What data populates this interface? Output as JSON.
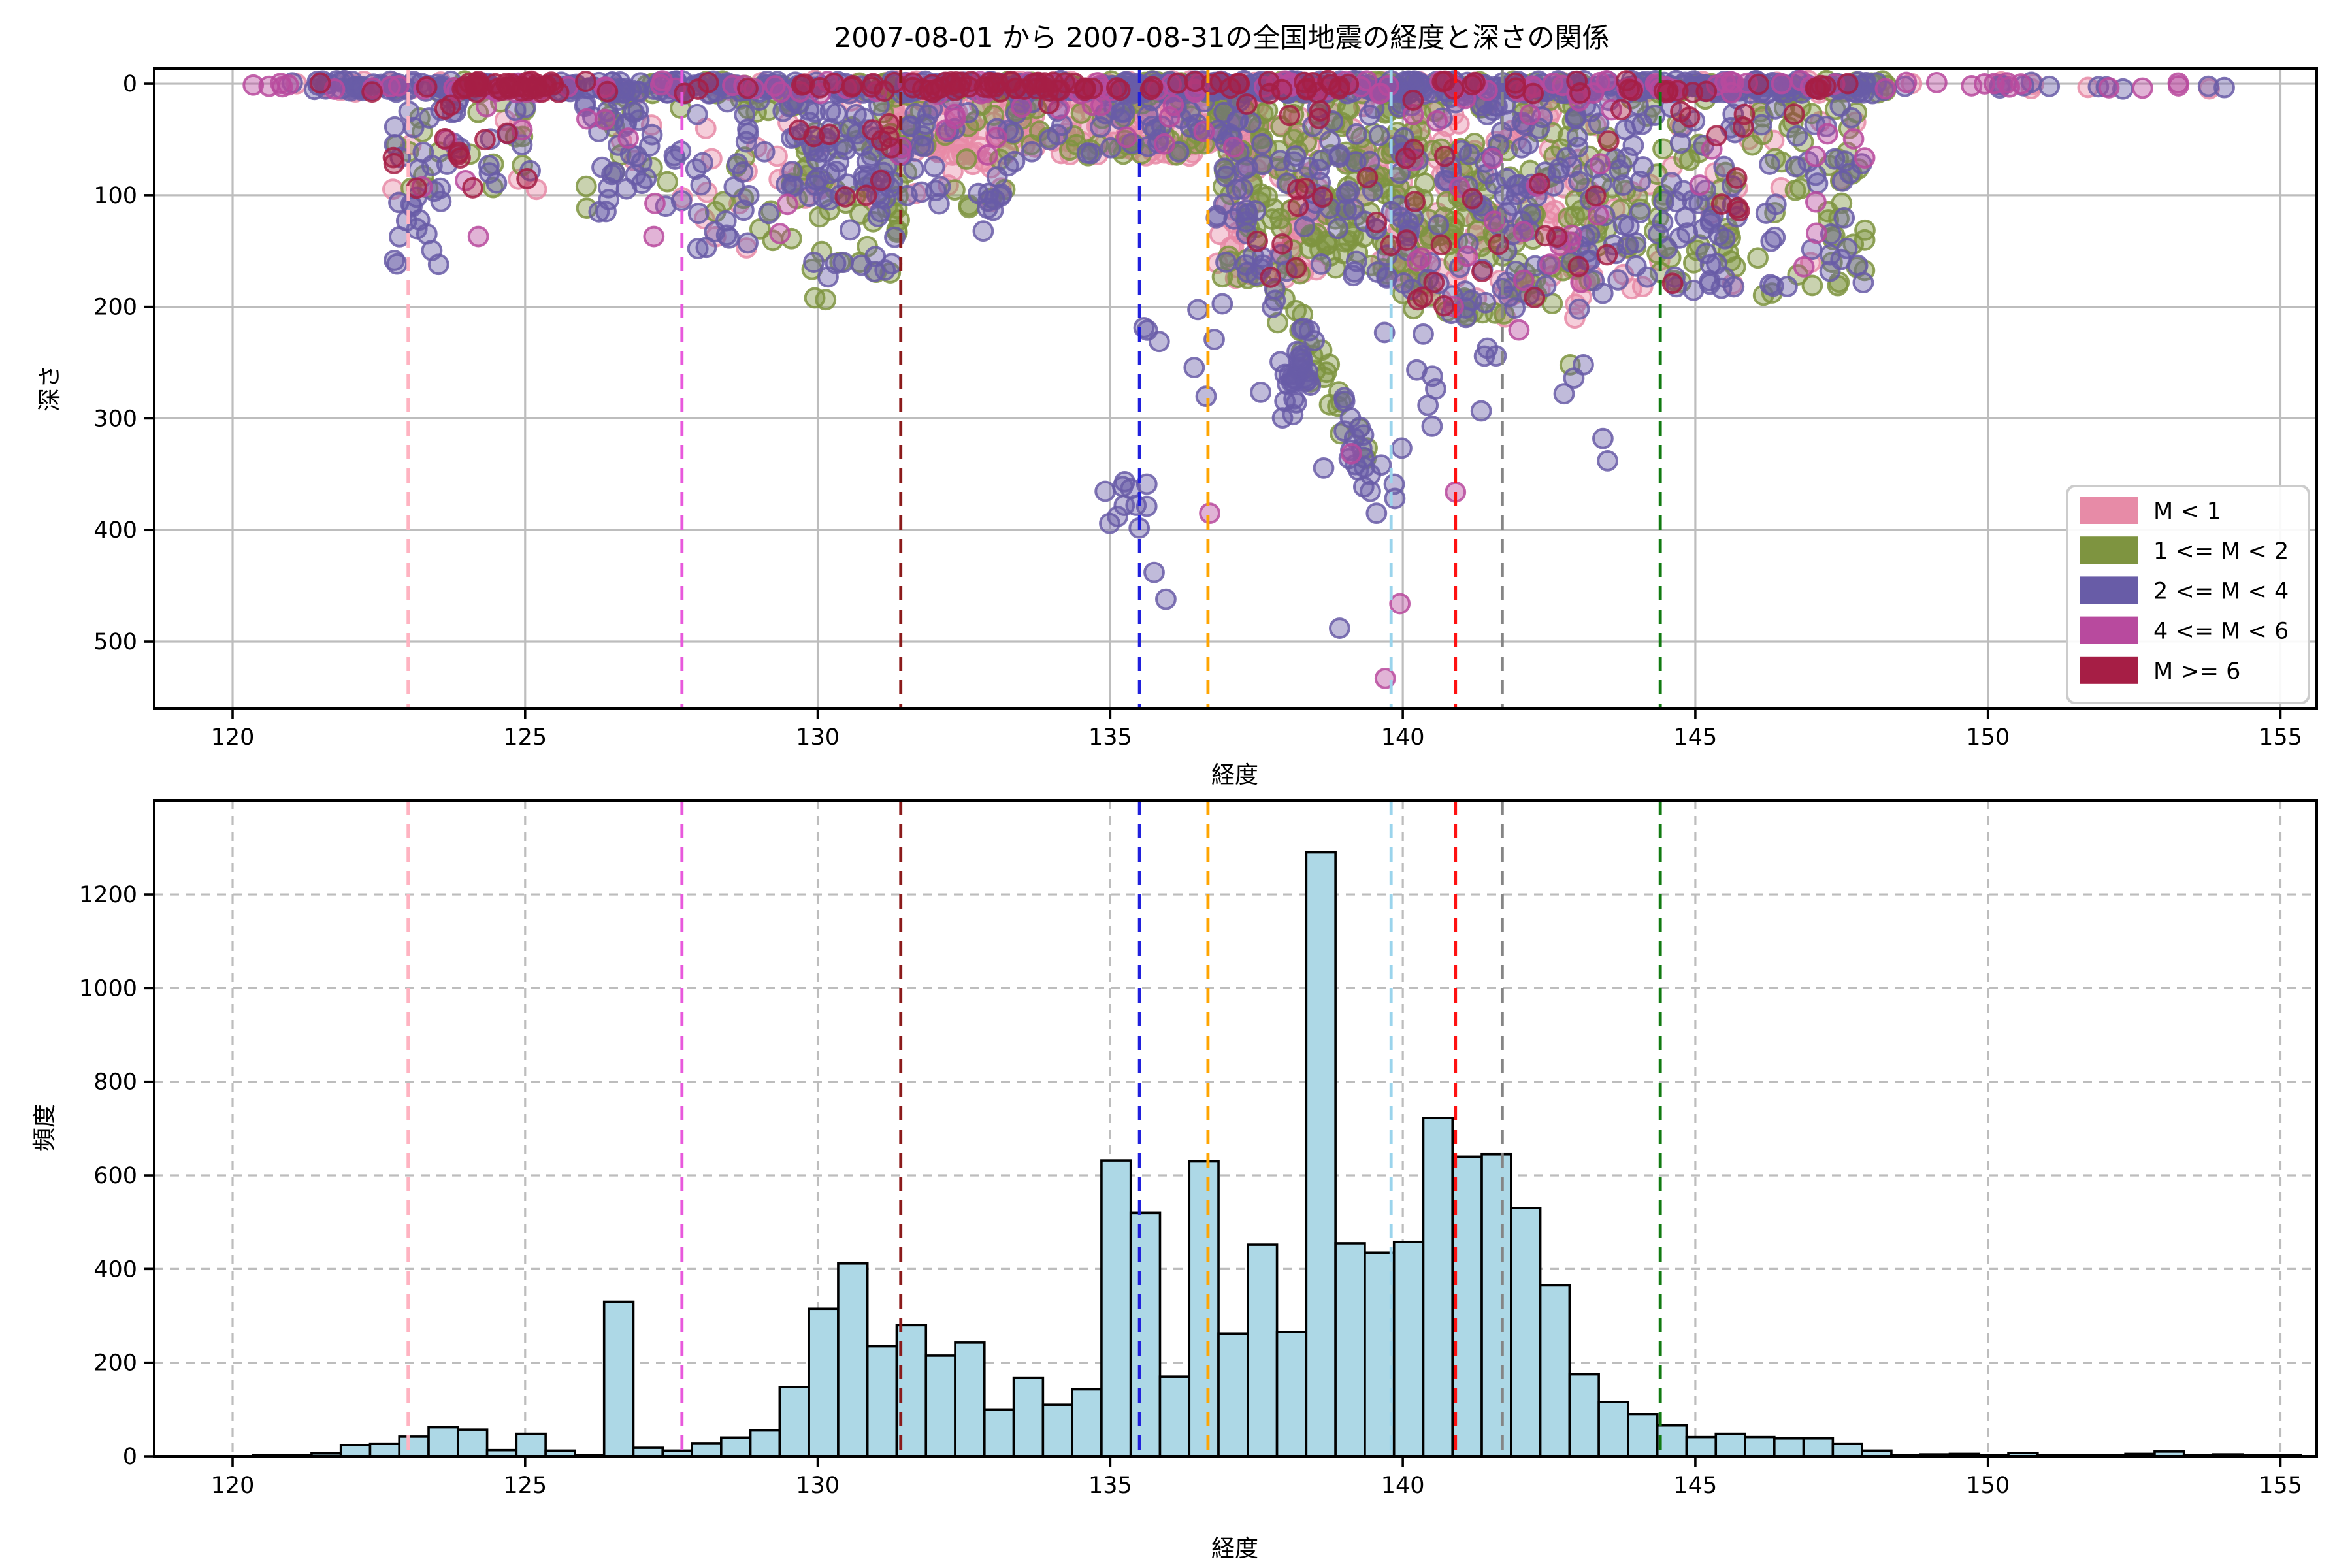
{
  "title": "2007-08-01 から 2007-08-31の全国地震の経度と深さの関係",
  "chart_data": [
    {
      "type": "scatter",
      "title": "2007-08-01 から 2007-08-31の全国地震の経度と深さの関係",
      "xlabel": "経度",
      "ylabel": "深さ",
      "xlim": [
        118.66,
        155.62
      ],
      "ylim": [
        559.7,
        -13.5
      ],
      "xticks": [
        120,
        125,
        130,
        135,
        140,
        145,
        150,
        155
      ],
      "yticks": [
        0,
        100,
        200,
        300,
        400,
        500
      ],
      "grid": "solid",
      "legend": {
        "position": "lower right",
        "entries": [
          {
            "label": "M < 1",
            "color": "#e78ba7"
          },
          {
            "label": "1 <= M < 2",
            "color": "#7e9440"
          },
          {
            "label": "2 <= M < 4",
            "color": "#685ca7"
          },
          {
            "label": "4 <= M < 6",
            "color": "#b84a9e"
          },
          {
            "label": "M >= 6",
            "color": "#a61e45"
          }
        ]
      },
      "class_colors": {
        "pk": "#e78ba7",
        "ol": "#7e9440",
        "pu": "#685ca7",
        "mg": "#b84a9e",
        "cr": "#a61e45"
      },
      "class_order": [
        "pk",
        "ol",
        "pu",
        "mg",
        "cr"
      ],
      "marker": {
        "radius": 7.2,
        "fill_opacity": 0.42,
        "stroke_opacity": 0.85,
        "stroke_width": 2
      },
      "vlines": [
        {
          "x": 123.0,
          "color": "#ffb3c1"
        },
        {
          "x": 127.68,
          "color": "#e858dc"
        },
        {
          "x": 131.42,
          "color": "#8b1a1a"
        },
        {
          "x": 135.5,
          "color": "#2020dd"
        },
        {
          "x": 136.67,
          "color": "#ffa500"
        },
        {
          "x": 139.8,
          "color": "#9ad4ec"
        },
        {
          "x": 140.9,
          "color": "#ff1111"
        },
        {
          "x": 141.7,
          "color": "#858585"
        },
        {
          "x": 144.4,
          "color": "#117a11"
        }
      ],
      "clusters": [
        {
          "x": [
            120.35,
            121.35
          ],
          "d": [
            -2,
            5
          ],
          "n": 7,
          "mix": {
            "pu": 0.4,
            "mg": 0.4,
            "pk": 0.2
          }
        },
        {
          "x": [
            121.35,
            126.4
          ],
          "d": [
            -3,
            8
          ],
          "n": 135,
          "mix": {
            "pu": 0.62,
            "mg": 0.14,
            "pk": 0.1,
            "ol": 0.08,
            "cr": 0.06
          }
        },
        {
          "x": [
            123.9,
            125.6
          ],
          "d": [
            -2,
            8
          ],
          "n": 40,
          "mix": {
            "cr": 0.8,
            "pu": 0.1,
            "mg": 0.1
          }
        },
        {
          "x": [
            126.4,
            131.0
          ],
          "d": [
            -3,
            9
          ],
          "n": 150,
          "mix": {
            "pu": 0.5,
            "pk": 0.15,
            "ol": 0.15,
            "mg": 0.1,
            "cr": 0.1
          }
        },
        {
          "x": [
            131.0,
            135.3
          ],
          "d": [
            -3,
            9
          ],
          "n": 160,
          "mix": {
            "pu": 0.42,
            "pk": 0.22,
            "ol": 0.14,
            "mg": 0.1,
            "cr": 0.12
          }
        },
        {
          "x": [
            131.9,
            134.6
          ],
          "d": [
            -2,
            7
          ],
          "n": 45,
          "mix": {
            "cr": 0.6,
            "pu": 0.25,
            "mg": 0.15
          }
        },
        {
          "x": [
            135.3,
            140.3
          ],
          "d": [
            -3,
            9
          ],
          "n": 290,
          "mix": {
            "pu": 0.45,
            "pk": 0.2,
            "ol": 0.2,
            "mg": 0.08,
            "cr": 0.07
          }
        },
        {
          "x": [
            140.3,
            148.3
          ],
          "d": [
            -3,
            9
          ],
          "n": 310,
          "mix": {
            "pu": 0.55,
            "ol": 0.15,
            "pk": 0.1,
            "mg": 0.12,
            "cr": 0.08
          }
        },
        {
          "x": [
            148.5,
            154.35
          ],
          "d": [
            -2,
            5
          ],
          "n": 30,
          "mix": {
            "mg": 0.45,
            "pu": 0.4,
            "pk": 0.15
          }
        },
        {
          "x": [
            122.5,
            125.2
          ],
          "d": [
            8,
            95
          ],
          "n": 70,
          "mix": {
            "ol": 0.3,
            "pu": 0.35,
            "pk": 0.15,
            "cr": 0.12,
            "mg": 0.08
          }
        },
        {
          "x": [
            122.7,
            123.6
          ],
          "d": [
            95,
            165
          ],
          "n": 14,
          "mix": {
            "pu": 0.85,
            "ol": 0.1,
            "mg": 0.05
          }
        },
        {
          "x": [
            126.0,
            127.7
          ],
          "d": [
            8,
            120
          ],
          "n": 55,
          "mix": {
            "pu": 0.62,
            "ol": 0.2,
            "mg": 0.1,
            "pk": 0.08
          }
        },
        {
          "x": [
            127.9,
            129.6
          ],
          "d": [
            8,
            150
          ],
          "n": 60,
          "mix": {
            "ol": 0.35,
            "pu": 0.4,
            "pk": 0.2,
            "mg": 0.05
          }
        },
        {
          "x": [
            129.5,
            131.4
          ],
          "d": [
            15,
            105
          ],
          "n": 90,
          "mix": {
            "pu": 0.55,
            "ol": 0.25,
            "pk": 0.08,
            "mg": 0.06,
            "cr": 0.06
          }
        },
        {
          "x": [
            129.9,
            131.4
          ],
          "d": [
            95,
            172
          ],
          "n": 28,
          "mix": {
            "ol": 0.55,
            "pu": 0.45
          }
        },
        {
          "x": [
            129.9,
            130.5
          ],
          "d": [
            150,
            198
          ],
          "n": 6,
          "mix": {
            "ol": 0.5,
            "pu": 0.5
          }
        },
        {
          "x": [
            131.3,
            137.6
          ],
          "d": [
            5,
            65
          ],
          "n": 330,
          "mix": {
            "pk": 0.55,
            "ol": 0.2,
            "pu": 0.2,
            "mg": 0.05
          }
        },
        {
          "x": [
            131.5,
            133.4
          ],
          "d": [
            60,
            112
          ],
          "n": 32,
          "mix": {
            "pu": 0.55,
            "pk": 0.25,
            "ol": 0.2
          }
        },
        {
          "x": [
            130.1,
            131.5
          ],
          "d": [
            30,
            110
          ],
          "n": 7,
          "mix": {
            "cr": 1
          }
        },
        {
          "x": [
            132.7,
            133.1
          ],
          "d": [
            95,
            140
          ],
          "n": 6,
          "mix": {
            "pu": 1
          }
        },
        {
          "x": [
            136.8,
            139.9
          ],
          "d": [
            15,
            175
          ],
          "n": 290,
          "mix": {
            "ol": 0.42,
            "pu": 0.28,
            "pk": 0.25,
            "cr": 0.05
          }
        },
        {
          "x": [
            139.9,
            143.3
          ],
          "d": [
            8,
            210
          ],
          "n": 390,
          "mix": {
            "pk": 0.22,
            "ol": 0.34,
            "pu": 0.32,
            "mg": 0.06,
            "cr": 0.06
          }
        },
        {
          "x": [
            143.3,
            147.9
          ],
          "d": [
            10,
            190
          ],
          "n": 240,
          "mix": {
            "ol": 0.42,
            "pu": 0.42,
            "pk": 0.08,
            "mg": 0.05,
            "cr": 0.03
          }
        },
        {
          "x": [
            137.2,
            139.45
          ],
          "d": [
            125,
            345
          ],
          "n": 60,
          "mix": {
            "pu": 0.6,
            "ol": 0.4
          },
          "trend": true
        },
        {
          "x": [
            137.85,
            138.45
          ],
          "d": [
            245,
            310
          ],
          "n": 22,
          "mix": {
            "pu": 1
          }
        },
        {
          "x": [
            138.5,
            140.3
          ],
          "d": [
            310,
            398
          ],
          "n": 10,
          "mix": {
            "pu": 0.9,
            "mg": 0.1
          }
        },
        {
          "x": [
            134.9,
            135.65
          ],
          "d": [
            345,
            405
          ],
          "n": 11,
          "mix": {
            "pu": 1
          }
        },
        {
          "x": [
            135.4,
            137.6
          ],
          "d": [
            180,
            285
          ],
          "n": 9,
          "mix": {
            "pu": 0.8,
            "ol": 0.2
          }
        },
        {
          "x": [
            139.5,
            143.1
          ],
          "d": [
            215,
            300
          ],
          "n": 14,
          "mix": {
            "pu": 0.75,
            "ol": 0.15,
            "mg": 0.1
          }
        },
        {
          "x": [
            144.6,
            145.85
          ],
          "d": [
            20,
            118
          ],
          "n": 5,
          "mix": {
            "cr": 1
          }
        }
      ],
      "singles": [
        [
          135.75,
          438,
          "pu"
        ],
        [
          135.95,
          462,
          "pu"
        ],
        [
          139.7,
          533,
          "mg"
        ],
        [
          139.95,
          466,
          "mg"
        ],
        [
          138.92,
          488,
          "pu"
        ],
        [
          140.9,
          366,
          "mg"
        ],
        [
          143.42,
          318,
          "pu"
        ],
        [
          143.5,
          338,
          "pu"
        ],
        [
          142.86,
          252,
          "ol"
        ],
        [
          139.55,
          385,
          "pu"
        ],
        [
          136.7,
          385,
          "mg"
        ],
        [
          140.5,
          307,
          "pu"
        ],
        [
          127.2,
          137,
          "mg"
        ],
        [
          124.2,
          137,
          "mg"
        ],
        [
          123.52,
          162,
          "pu"
        ],
        [
          147.07,
          134,
          "mg"
        ],
        [
          147.26,
          45,
          "mg"
        ],
        [
          129.95,
          192,
          "ol"
        ],
        [
          133.95,
          18,
          "cr"
        ],
        [
          144.75,
          25,
          "cr"
        ],
        [
          144.9,
          30,
          "cr"
        ],
        [
          145.45,
          108,
          "cr"
        ],
        [
          145.75,
          114,
          "cr"
        ]
      ],
      "note": "dense point cloud approximated by cluster sampling read from the pixels"
    },
    {
      "type": "bar",
      "title": "",
      "xlabel": "経度",
      "ylabel": "頻度",
      "xlim": [
        118.66,
        155.62
      ],
      "ylim": [
        0,
        1401
      ],
      "xticks": [
        120,
        125,
        130,
        135,
        140,
        145,
        150,
        155
      ],
      "yticks": [
        0,
        200,
        400,
        600,
        800,
        1000,
        1200
      ],
      "grid": "dashed",
      "bar_color": "#add8e6",
      "bar_edge_color": "#000000",
      "bin_start": 120.35,
      "bin_width": 0.5,
      "values": [
        2,
        3,
        6,
        24,
        27,
        42,
        62,
        57,
        13,
        48,
        12,
        3,
        330,
        18,
        12,
        28,
        40,
        55,
        148,
        315,
        412,
        235,
        280,
        215,
        243,
        100,
        168,
        110,
        143,
        632,
        520,
        170,
        630,
        262,
        452,
        265,
        1290,
        455,
        435,
        458,
        723,
        640,
        645,
        530,
        365,
        175,
        116,
        90,
        66,
        41,
        48,
        41,
        38,
        38,
        27,
        12,
        3,
        4,
        5,
        3,
        7,
        2,
        2,
        3,
        5,
        10,
        2,
        4,
        2,
        2
      ],
      "vlines": [
        {
          "x": 123.0,
          "color": "#ffb3c1"
        },
        {
          "x": 127.68,
          "color": "#e858dc"
        },
        {
          "x": 131.42,
          "color": "#8b1a1a"
        },
        {
          "x": 135.5,
          "color": "#2020dd"
        },
        {
          "x": 136.67,
          "color": "#ffa500"
        },
        {
          "x": 139.8,
          "color": "#9ad4ec"
        },
        {
          "x": 140.9,
          "color": "#ff1111"
        },
        {
          "x": 141.7,
          "color": "#858585"
        },
        {
          "x": 144.4,
          "color": "#117a11"
        }
      ]
    }
  ]
}
